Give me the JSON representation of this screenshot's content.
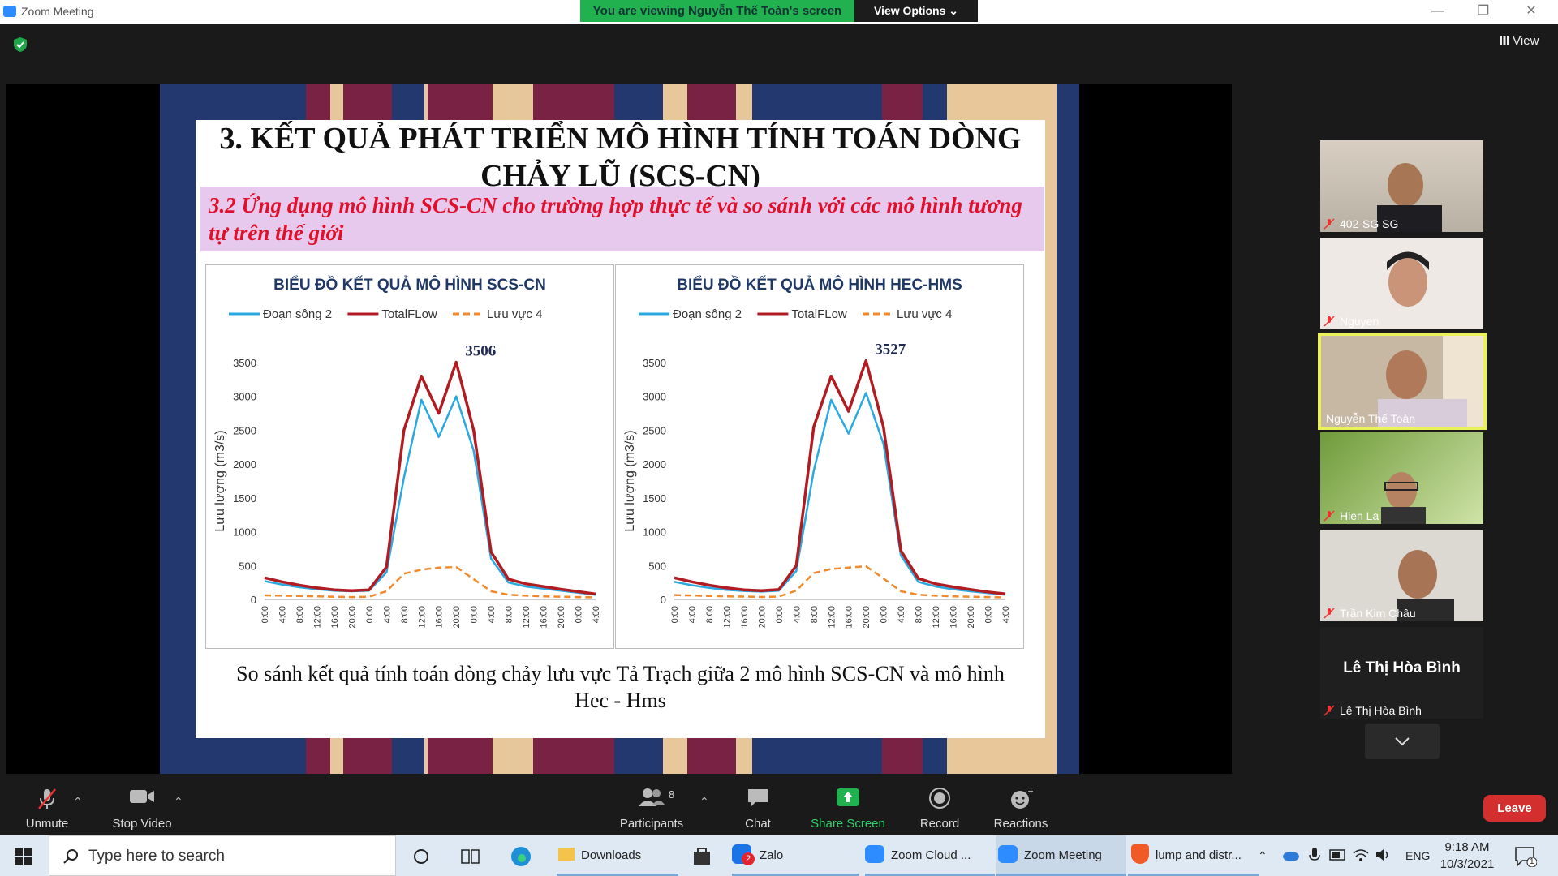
{
  "window": {
    "title": "Zoom Meeting",
    "minimize": "—",
    "restore": "❐",
    "close": "✕"
  },
  "banner": {
    "text": "You are viewing Nguyễn Thế Toàn's screen",
    "view_options": "View Options ⌄"
  },
  "top": {
    "view_label": "View"
  },
  "slide": {
    "title": "3. KẾT QUẢ PHÁT TRIỂN MÔ HÌNH TÍNH TOÁN DÒNG CHẢY LŨ (SCS-CN)",
    "subtitle": "3.2 Ứng dụng mô hình SCS-CN cho trường hợp thực tế và so sánh với các mô hình tương tự trên thế giới",
    "caption": "So sánh kết quả tính toán dòng chảy lưu vực Tả Trạch giữa 2 mô hình SCS-CN và mô hình Hec - Hms"
  },
  "chart_data": [
    {
      "type": "line",
      "title": "BIỂU ĐỒ KẾT QUẢ  MÔ HÌNH SCS-CN",
      "ylabel": "Lưu lượng (m3/s)",
      "ylim": [
        0,
        3500
      ],
      "yticks": [
        "0",
        "500",
        "1000",
        "1500",
        "2000",
        "2500",
        "3000",
        "3500"
      ],
      "categories": [
        "0:00",
        "4:00",
        "8:00",
        "12:00",
        "16:00",
        "20:00",
        "0:00",
        "4:00",
        "8:00",
        "12:00",
        "16:00",
        "20:00",
        "0:00",
        "4:00",
        "8:00",
        "12:00",
        "16:00",
        "20:00",
        "0:00",
        "4:00"
      ],
      "peak_label": "3506",
      "series": [
        {
          "name": "Đoạn sông 2",
          "color": "#2aa8e0",
          "values": [
            270,
            220,
            180,
            150,
            130,
            120,
            130,
            400,
            1800,
            2950,
            2400,
            3000,
            2200,
            600,
            250,
            190,
            160,
            130,
            100,
            70
          ]
        },
        {
          "name": "TotalFLow",
          "color": "#b01c22",
          "values": [
            320,
            260,
            210,
            170,
            140,
            130,
            140,
            480,
            2500,
            3300,
            2750,
            3506,
            2500,
            700,
            300,
            230,
            190,
            150,
            115,
            80
          ]
        },
        {
          "name": "Lưu vực 4",
          "color": "#f08a2c",
          "values": [
            60,
            55,
            50,
            45,
            40,
            35,
            40,
            120,
            380,
            440,
            470,
            480,
            300,
            120,
            70,
            55,
            45,
            40,
            35,
            30
          ]
        }
      ],
      "legend": "top"
    },
    {
      "type": "line",
      "title": "BIỂU ĐỒ KẾT QUẢ  MÔ HÌNH HEC-HMS",
      "ylabel": "Lưu lượng (m3/s)",
      "ylim": [
        0,
        3500
      ],
      "yticks": [
        "0",
        "500",
        "1000",
        "1500",
        "2000",
        "2500",
        "3000",
        "3500"
      ],
      "categories": [
        "0:00",
        "4:00",
        "8:00",
        "12:00",
        "16:00",
        "20:00",
        "0:00",
        "4:00",
        "8:00",
        "12:00",
        "16:00",
        "20:00",
        "0:00",
        "4:00",
        "8:00",
        "12:00",
        "16:00",
        "20:00",
        "0:00",
        "4:00"
      ],
      "peak_label": "3527",
      "series": [
        {
          "name": "Đoạn sông 2",
          "color": "#2aa8e0",
          "values": [
            260,
            210,
            170,
            140,
            125,
            115,
            130,
            420,
            1900,
            2950,
            2450,
            3050,
            2300,
            650,
            260,
            190,
            150,
            120,
            95,
            70
          ]
        },
        {
          "name": "TotalFLow",
          "color": "#b01c22",
          "values": [
            320,
            260,
            210,
            170,
            140,
            130,
            145,
            500,
            2550,
            3300,
            2780,
            3527,
            2550,
            720,
            310,
            230,
            185,
            145,
            110,
            80
          ]
        },
        {
          "name": "Lưu vực 4",
          "color": "#f08a2c",
          "values": [
            65,
            58,
            52,
            46,
            42,
            36,
            42,
            130,
            390,
            450,
            470,
            490,
            310,
            120,
            70,
            55,
            45,
            40,
            35,
            30
          ]
        }
      ],
      "legend": "top"
    }
  ],
  "participants_panel": [
    {
      "name": "402-SG SG"
    },
    {
      "name": "Nguyen"
    },
    {
      "name": "Nguyễn Thế Toàn"
    },
    {
      "name": "Hien La"
    },
    {
      "name": "Trần Kim Châu"
    },
    {
      "name": "Lê Thị Hòa Bình",
      "big": "Lê Thị Hòa Bình"
    }
  ],
  "toolbar": {
    "unmute": "Unmute",
    "stop_video": "Stop Video",
    "participants": "Participants",
    "participants_count": "8",
    "chat": "Chat",
    "share_screen": "Share Screen",
    "record": "Record",
    "reactions": "Reactions",
    "leave": "Leave"
  },
  "taskbar": {
    "search_placeholder": "Type here to search",
    "apps": [
      {
        "label": "Downloads"
      },
      {
        "label": "Zalo",
        "badge": "2"
      },
      {
        "label": "Zoom Cloud ..."
      },
      {
        "label": "Zoom Meeting"
      },
      {
        "label": "lump and distr..."
      }
    ],
    "lang": "ENG",
    "time": "9:18 AM",
    "date": "10/3/2021",
    "notif": "1"
  }
}
